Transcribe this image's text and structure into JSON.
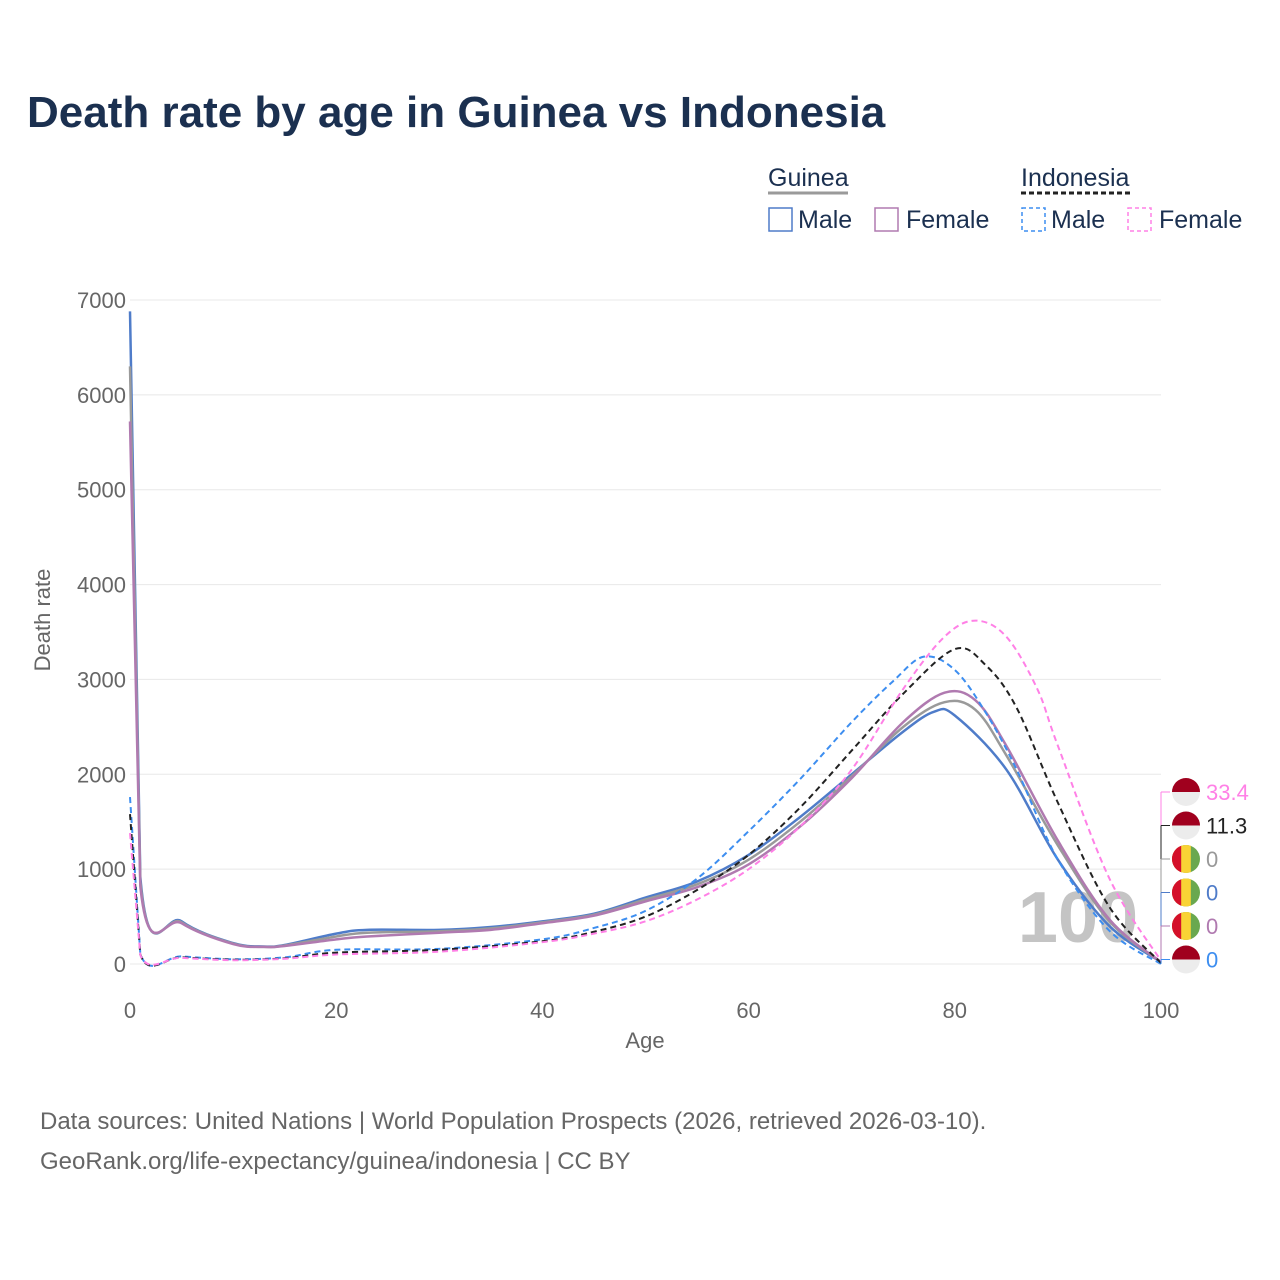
{
  "title": "Death rate by age in Guinea vs Indonesia",
  "source_line1": "Data sources: United Nations | World Population Prospects (2026, retrieved 2026-03-10).",
  "source_line2": "GeoRank.org/life-expectancy/guinea/indonesia | CC BY",
  "legend": {
    "groups": [
      {
        "name": "Guinea",
        "male": "Male",
        "female": "Female"
      },
      {
        "name": "Indonesia",
        "male": "Male",
        "female": "Female"
      }
    ]
  },
  "watermark": "100",
  "chart_data": {
    "type": "line",
    "title": "Death rate by age in Guinea vs Indonesia",
    "xlabel": "Age",
    "ylabel": "Death rate",
    "xlim": [
      0,
      100
    ],
    "ylim": [
      0,
      7000
    ],
    "xticks": [
      0,
      20,
      40,
      60,
      80,
      100
    ],
    "yticks": [
      0,
      1000,
      2000,
      3000,
      4000,
      5000,
      6000,
      7000
    ],
    "grid": true,
    "legend": "top-right",
    "series": [
      {
        "name": "Guinea Male",
        "color": "#4f7cc9",
        "dash": false,
        "end_label": "0",
        "x": [
          0,
          1,
          5,
          10,
          13,
          15,
          20,
          23,
          30,
          35,
          40,
          45,
          50,
          55,
          60,
          65,
          70,
          75,
          78,
          80,
          85,
          90,
          95,
          100
        ],
        "y": [
          6880,
          920,
          450,
          220,
          185,
          200,
          320,
          360,
          360,
          390,
          450,
          530,
          700,
          870,
          1150,
          1550,
          2000,
          2450,
          2660,
          2620,
          2050,
          1100,
          400,
          20
        ]
      },
      {
        "name": "Guinea Total",
        "color": "#9a9a9a",
        "dash": false,
        "end_label": "0",
        "x": [
          0,
          1,
          5,
          10,
          13,
          15,
          20,
          23,
          30,
          35,
          40,
          45,
          50,
          55,
          60,
          65,
          70,
          75,
          79,
          82,
          85,
          90,
          95,
          100
        ],
        "y": [
          6300,
          870,
          440,
          215,
          180,
          195,
          290,
          330,
          345,
          375,
          440,
          520,
          680,
          840,
          1100,
          1500,
          1980,
          2500,
          2760,
          2680,
          2200,
          1250,
          450,
          20
        ]
      },
      {
        "name": "Guinea Female",
        "color": "#b07ab0",
        "dash": false,
        "end_label": "0",
        "x": [
          0,
          1,
          5,
          10,
          13,
          15,
          20,
          23,
          30,
          35,
          40,
          45,
          50,
          55,
          60,
          65,
          70,
          75,
          79,
          82,
          85,
          90,
          95,
          100
        ],
        "y": [
          5720,
          820,
          430,
          210,
          180,
          190,
          260,
          290,
          330,
          360,
          430,
          510,
          660,
          810,
          1050,
          1450,
          1960,
          2550,
          2860,
          2780,
          2300,
          1300,
          470,
          20
        ]
      },
      {
        "name": "Indonesia Male",
        "color": "#3d8ef0",
        "dash": true,
        "end_label": "0",
        "x": [
          0,
          1,
          5,
          10,
          15,
          20,
          30,
          40,
          45,
          50,
          55,
          60,
          65,
          70,
          74,
          77,
          80,
          83,
          86,
          90,
          95,
          100
        ],
        "y": [
          1760,
          110,
          80,
          50,
          70,
          150,
          160,
          260,
          380,
          560,
          900,
          1400,
          1950,
          2550,
          2980,
          3240,
          3100,
          2650,
          2050,
          1100,
          350,
          0
        ]
      },
      {
        "name": "Indonesia Total",
        "color": "#222222",
        "dash": true,
        "end_label": "11.3",
        "x": [
          0,
          1,
          5,
          10,
          15,
          20,
          30,
          40,
          45,
          50,
          55,
          60,
          65,
          70,
          75,
          80,
          83,
          86,
          90,
          95,
          100
        ],
        "y": [
          1580,
          100,
          70,
          45,
          60,
          120,
          150,
          240,
          340,
          500,
          780,
          1150,
          1650,
          2250,
          2850,
          3320,
          3150,
          2700,
          1700,
          600,
          11.3
        ]
      },
      {
        "name": "Indonesia Female",
        "color": "#ff80e6",
        "dash": true,
        "end_label": "33.4",
        "x": [
          0,
          1,
          5,
          10,
          15,
          20,
          30,
          40,
          45,
          50,
          55,
          60,
          65,
          70,
          75,
          79,
          82,
          85,
          88,
          90,
          95,
          100
        ],
        "y": [
          1380,
          95,
          65,
          40,
          55,
          100,
          130,
          230,
          320,
          450,
          680,
          1000,
          1450,
          2050,
          2900,
          3450,
          3620,
          3450,
          2900,
          2300,
          900,
          33.4
        ]
      }
    ]
  }
}
